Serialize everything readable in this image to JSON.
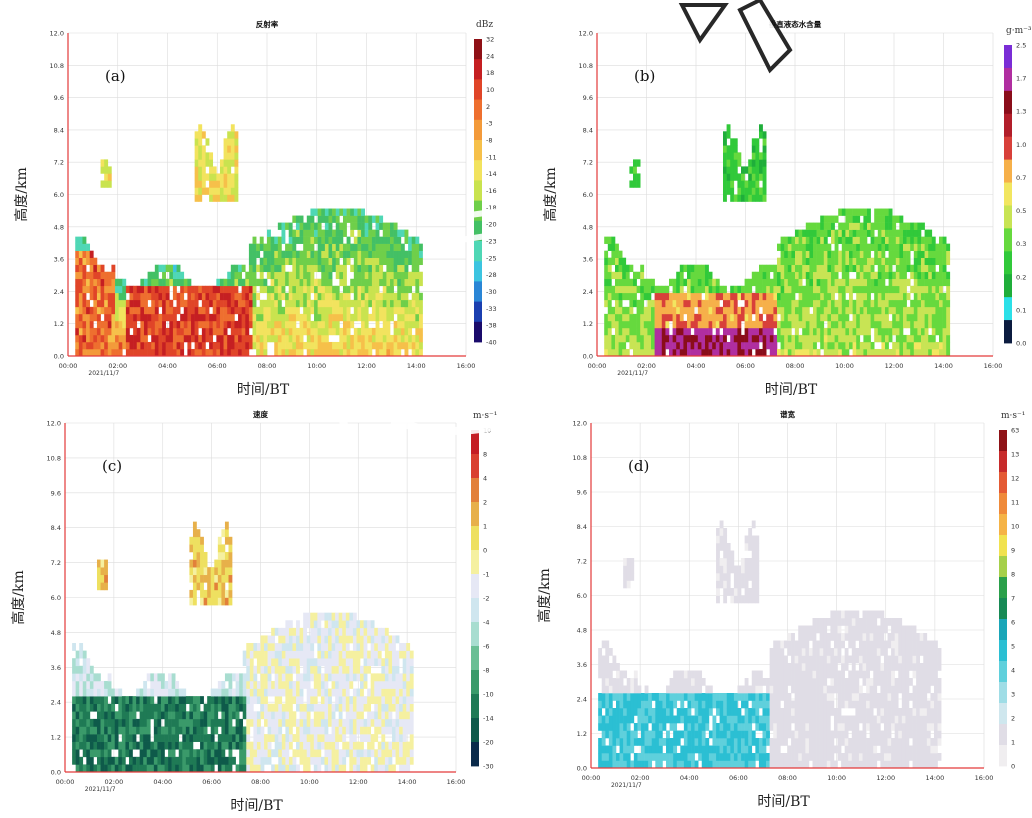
{
  "figure": {
    "common_xlabel": "时间/BT",
    "common_ylabel": "高度/km",
    "date_label": "2021/11/7",
    "time_ticks": [
      "00:00",
      "02:00",
      "04:00",
      "06:00",
      "08:00",
      "10:00",
      "12:00",
      "14:00",
      "16:00"
    ],
    "height_ticks": [
      "0.0",
      "1.2",
      "2.4",
      "3.6",
      "4.8",
      "6.0",
      "7.2",
      "8.4",
      "9.6",
      "10.8",
      "12.0"
    ]
  },
  "chart_data": [
    {
      "type": "heatmap",
      "panel": "(a)",
      "title": "反射率",
      "unit": "dBz",
      "colorbar_labels": [
        "32",
        "24",
        "18",
        "10",
        "2",
        "-3",
        "-8",
        "-11",
        "-14",
        "-16",
        "-18",
        "-20",
        "-23",
        "-25",
        "-28",
        "-30",
        "-33",
        "-38",
        "-40"
      ],
      "x_range_hours": [
        0,
        16
      ],
      "y_range_km": [
        0,
        12
      ],
      "axis_color": "#e33a3a"
    },
    {
      "type": "heatmap",
      "panel": "(b)",
      "title": "垂直液态水含量",
      "unit": "g·m⁻³",
      "colorbar_labels": [
        "2.5",
        "1.7",
        "1.3",
        "1.0",
        "0.7",
        "0.5",
        "0.3",
        "0.2",
        "0.1",
        "0.0"
      ],
      "x_range_hours": [
        0,
        16
      ],
      "y_range_km": [
        0,
        12
      ],
      "axis_color": "#e33a3a"
    },
    {
      "type": "heatmap",
      "panel": "(c)",
      "title": "速度",
      "unit": "m·s⁻¹",
      "colorbar_labels": [
        "10",
        "8",
        "4",
        "2",
        "1",
        "0",
        "-1",
        "-2",
        "-4",
        "-6",
        "-8",
        "-10",
        "-14",
        "-20",
        "-30"
      ],
      "x_range_hours": [
        0,
        16
      ],
      "y_range_km": [
        0,
        12
      ],
      "axis_color": "#e33a3a"
    },
    {
      "type": "heatmap",
      "panel": "(d)",
      "title": "谱宽",
      "unit": "m·s⁻¹",
      "colorbar_labels": [
        "63",
        "13",
        "12",
        "11",
        "10",
        "9",
        "8",
        "7",
        "6",
        "5",
        "4",
        "3",
        "2",
        "1",
        "0"
      ],
      "x_range_hours": [
        0,
        16
      ],
      "y_range_km": [
        0,
        12
      ],
      "axis_color": "#e33a3a"
    }
  ],
  "colors": {
    "axis_red": "#e33a3a",
    "grid": "#dcdcdc",
    "reflectivity": [
      "#1a0b6b",
      "#1b3fb0",
      "#2a86d6",
      "#3cc4e0",
      "#4fd7b5",
      "#43c065",
      "#6fcf4a",
      "#c9e34f",
      "#f2e35e",
      "#f6c04a",
      "#f39a3a",
      "#ee6f2f",
      "#e04528",
      "#c51f22",
      "#8f1016"
    ],
    "lwc": [
      "#0b1b3f",
      "#2be0e8",
      "#1fae3a",
      "#31c93a",
      "#66d93e",
      "#c8e454",
      "#f2e660",
      "#f6b04a",
      "#d8403a",
      "#b21e2a",
      "#8a0d1a",
      "#b02ea0",
      "#7a2dd6"
    ],
    "velocity": [
      "#0a2a4a",
      "#0e5a4a",
      "#1f7a55",
      "#3a9a6a",
      "#6abf95",
      "#a8ddd0",
      "#cfe6ef",
      "#e6e8f5",
      "#f5f0a0",
      "#eee060",
      "#e7b04a",
      "#e2803a",
      "#d94030",
      "#c41d24"
    ],
    "spectrum": [
      "#f0eef0",
      "#e0dde6",
      "#cfe7ee",
      "#9fdde6",
      "#5fd0dc",
      "#2bbfd3",
      "#1aa6b8",
      "#178a55",
      "#2aa04a",
      "#a6d04a",
      "#f1e24f",
      "#f5b346",
      "#ef8a3a",
      "#e45a34",
      "#c72b2b",
      "#8e1216"
    ]
  }
}
